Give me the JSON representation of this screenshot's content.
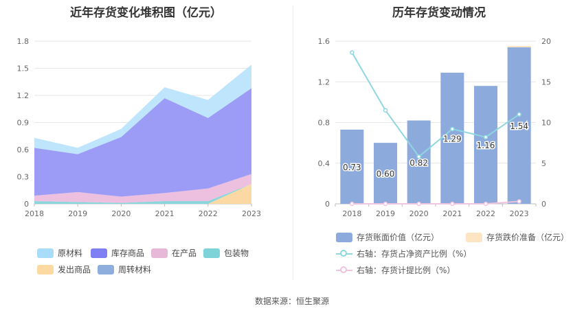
{
  "source": "数据来源：恒生聚源",
  "chart_data": [
    {
      "type": "area",
      "title": "近年存货变化堆积图（亿元）",
      "categories": [
        "2018",
        "2019",
        "2020",
        "2021",
        "2022",
        "2023"
      ],
      "yticks": [
        "0",
        "0.3",
        "0.6",
        "0.9",
        "1.2",
        "1.5",
        "1.8"
      ],
      "ylim": [
        0,
        1.8
      ],
      "stacked": true,
      "grid": true,
      "legend_position": "bottom",
      "series": [
        {
          "name": "发出商品",
          "color": "#fcd9a4",
          "values": [
            0,
            0,
            0,
            0,
            0,
            0.22
          ]
        },
        {
          "name": "包装物",
          "color": "#8ad6dc",
          "values": [
            0.03,
            0.02,
            0.01,
            0.03,
            0.03,
            0.0
          ]
        },
        {
          "name": "在产品",
          "color": "#ecc0de",
          "values": [
            0.06,
            0.11,
            0.07,
            0.09,
            0.14,
            0.11
          ]
        },
        {
          "name": "库存商品",
          "color": "#9c9cf6",
          "values": [
            0.53,
            0.42,
            0.66,
            1.05,
            0.78,
            0.95
          ]
        },
        {
          "name": "原材料",
          "color": "#bee5fb",
          "values": [
            0.11,
            0.07,
            0.09,
            0.12,
            0.2,
            0.26
          ]
        },
        {
          "name": "周转材料",
          "color": "#8eaede",
          "values": [
            0,
            0,
            0,
            0,
            0,
            0
          ]
        }
      ],
      "legend": [
        {
          "name": "原材料",
          "color": "#a8dcf8"
        },
        {
          "name": "库存商品",
          "color": "#7f7ff4"
        },
        {
          "name": "在产品",
          "color": "#e8b8d8"
        },
        {
          "name": "包装物",
          "color": "#7dd3d8"
        },
        {
          "name": "发出商品",
          "color": "#fcd9a0"
        },
        {
          "name": "周转材料",
          "color": "#8eaede"
        }
      ]
    },
    {
      "type": "bar",
      "title": "历年存货变动情况",
      "categories": [
        "2018",
        "2019",
        "2020",
        "2021",
        "2022",
        "2023"
      ],
      "yticks_left": [
        "0",
        "0.4",
        "0.8",
        "1.2",
        "1.6"
      ],
      "ylim_left": [
        0,
        1.6
      ],
      "yticks_right": [
        "0",
        "5",
        "10",
        "15",
        "20"
      ],
      "ylim_right": [
        0,
        20
      ],
      "legend_position": "bottom",
      "series": [
        {
          "name": "存货账面价值（亿元）",
          "axis": "left",
          "type": "bar",
          "color": "#8cabdc",
          "values": [
            0.73,
            0.6,
            0.82,
            1.29,
            1.16,
            1.54
          ],
          "labels": [
            "0.73",
            "0.60",
            "0.82",
            "1.29",
            "1.16",
            "1.54"
          ]
        },
        {
          "name": "存货跌价准备（亿元）",
          "axis": "left",
          "type": "bar",
          "color": "#fde5c3",
          "values": [
            0,
            0,
            0,
            0,
            0,
            0.01
          ]
        },
        {
          "name": "右轴：存货占净资产比例（%）",
          "axis": "right",
          "type": "line",
          "color": "#8fd7e0",
          "values": [
            18.6,
            11.5,
            5.8,
            9.2,
            8.2,
            11.0
          ]
        },
        {
          "name": "右轴：存货计提比例（%）",
          "axis": "right",
          "type": "line",
          "color": "#f0c3df",
          "values": [
            0,
            0,
            0,
            0,
            0,
            0.3
          ]
        }
      ]
    }
  ]
}
